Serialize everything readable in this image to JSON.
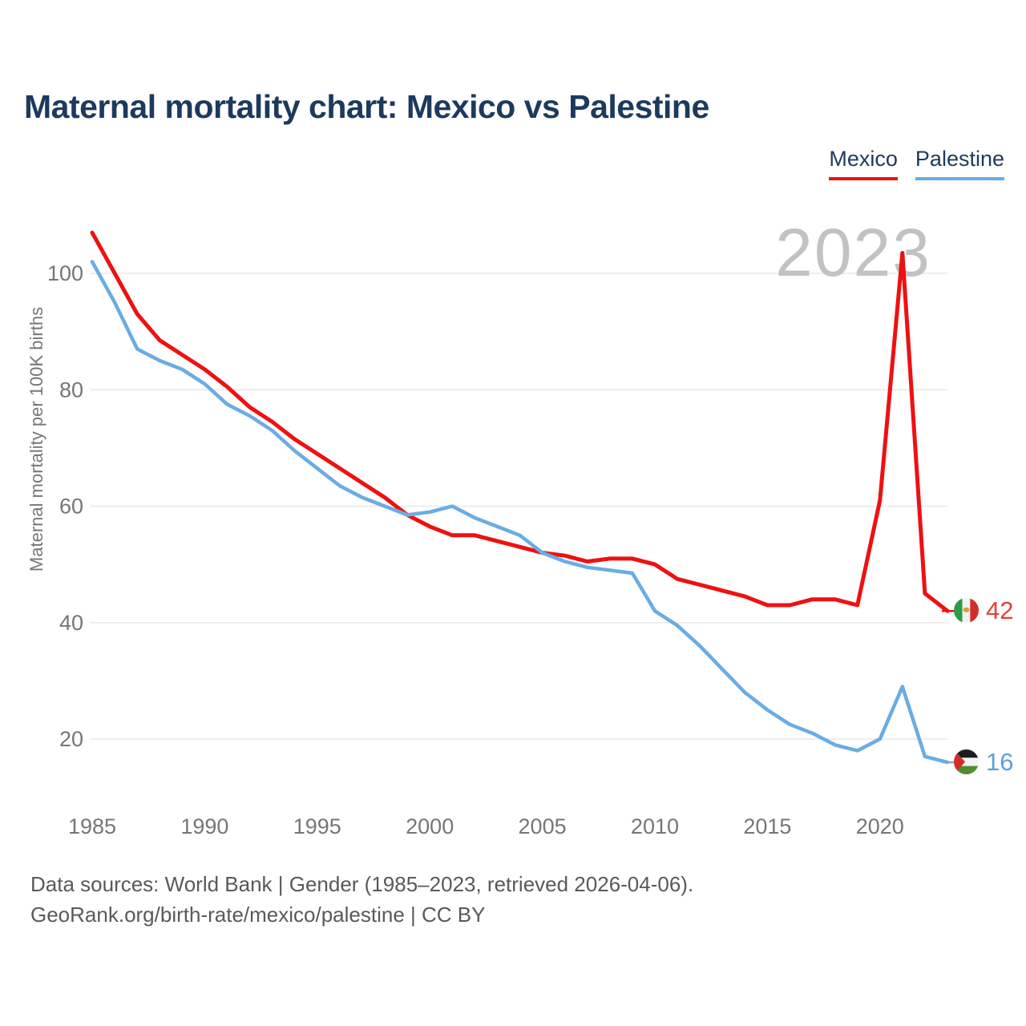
{
  "header": {
    "title": "Maternal mortality chart: Mexico vs Palestine"
  },
  "legend": {
    "items": [
      {
        "label": "Mexico",
        "color": "#ee1111"
      },
      {
        "label": "Palestine",
        "color": "#6aace4"
      }
    ]
  },
  "y_axis": {
    "title": "Maternal mortality per 100K births"
  },
  "watermark": "2023",
  "end_labels": {
    "mexico": {
      "value": "42",
      "flag": "mexico-flag-icon"
    },
    "palestine": {
      "value": "16",
      "flag": "palestine-flag-icon"
    }
  },
  "footer": {
    "line1": "Data sources: World Bank | Gender (1985–2023, retrieved 2026-04-06).",
    "line2": "GeoRank.org/birth-rate/mexico/palestine | CC BY"
  },
  "chart_data": {
    "type": "line",
    "title": "Maternal mortality chart: Mexico vs Palestine",
    "xlabel": "",
    "ylabel": "Maternal mortality per 100K births",
    "xlim": [
      1985,
      2023
    ],
    "ylim": [
      10,
      110
    ],
    "x_ticks": [
      1985,
      1990,
      1995,
      2000,
      2005,
      2010,
      2015,
      2020
    ],
    "y_ticks": [
      20,
      40,
      60,
      80,
      100
    ],
    "grid": "horizontal",
    "legend_position": "top-right",
    "watermark": "2023",
    "x": [
      1985,
      1986,
      1987,
      1988,
      1989,
      1990,
      1991,
      1992,
      1993,
      1994,
      1995,
      1996,
      1997,
      1998,
      1999,
      2000,
      2001,
      2002,
      2003,
      2004,
      2005,
      2006,
      2007,
      2008,
      2009,
      2010,
      2011,
      2012,
      2013,
      2014,
      2015,
      2016,
      2017,
      2018,
      2019,
      2020,
      2021,
      2022,
      2023
    ],
    "series": [
      {
        "name": "Mexico",
        "color": "#ee1111",
        "stroke_width": 5,
        "end_label": 42,
        "values": [
          107,
          100,
          93,
          88.5,
          86,
          83.5,
          80.5,
          77,
          74.5,
          71.5,
          69,
          66.5,
          64,
          61.5,
          58.5,
          56.5,
          55,
          55,
          54,
          53,
          52,
          51.5,
          50.5,
          51,
          51,
          50,
          47.5,
          46.5,
          45.5,
          44.5,
          43,
          43,
          44,
          44,
          43,
          61,
          103.5,
          45,
          42
        ]
      },
      {
        "name": "Palestine",
        "color": "#6aace4",
        "stroke_width": 4.5,
        "end_label": 16,
        "values": [
          102,
          95,
          87,
          85,
          83.5,
          81,
          77.5,
          75.5,
          73,
          69.5,
          66.5,
          63.5,
          61.5,
          60,
          58.5,
          59,
          60,
          58,
          56.5,
          55,
          52,
          50.5,
          49.5,
          49,
          48.5,
          42,
          39.5,
          36,
          32,
          28,
          25,
          22.5,
          21,
          19,
          18,
          20,
          29,
          17,
          16
        ]
      }
    ]
  }
}
